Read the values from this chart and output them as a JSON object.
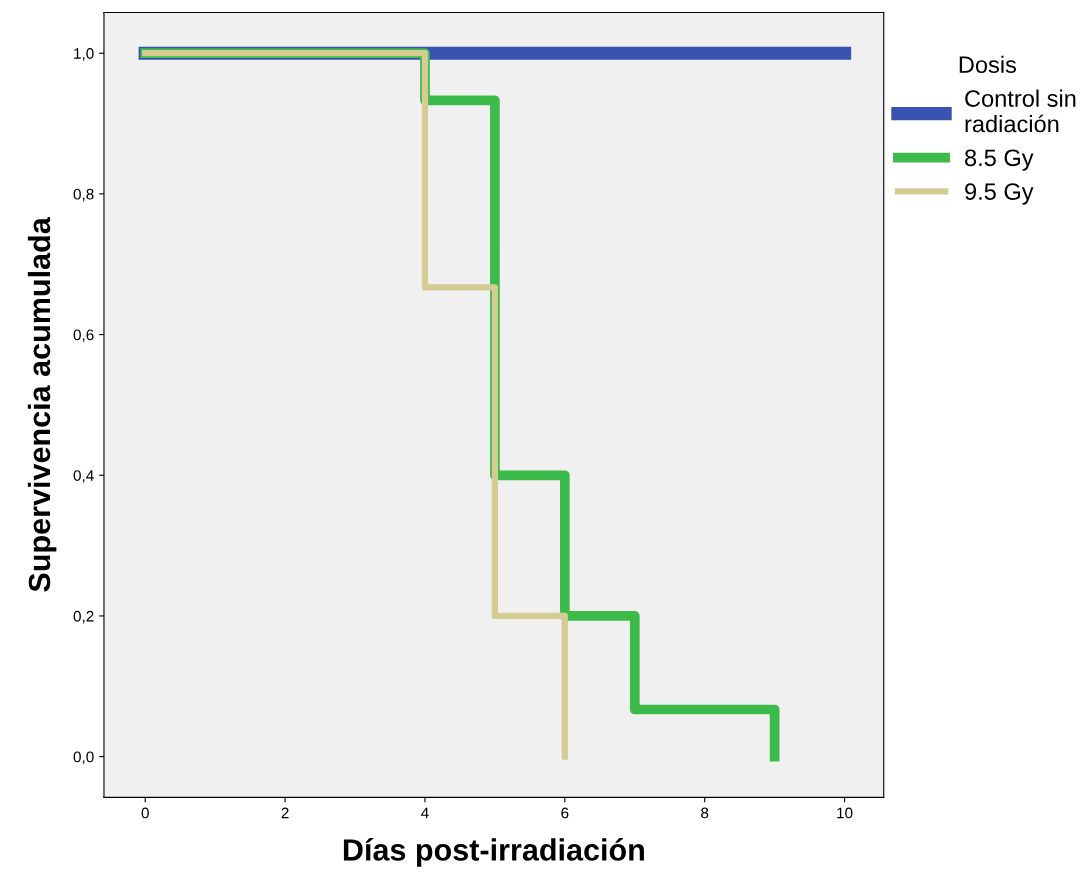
{
  "chart_data": {
    "type": "step",
    "xlabel": "Días post-irradiación",
    "ylabel": "Supervivencia acumulada",
    "legend_title": "Dosis",
    "series": [
      {
        "name": "Control sin\nradiación",
        "color": "#3a52b0",
        "x": [
          0,
          10
        ],
        "values": [
          1.0,
          1.0
        ]
      },
      {
        "name": "8.5 Gy",
        "color": "#3dbb4a",
        "x": [
          0,
          4,
          5,
          6,
          7,
          9
        ],
        "values": [
          1.0,
          0.933,
          0.4,
          0.2,
          0.067,
          0.0
        ]
      },
      {
        "name": "9.5 Gy",
        "color": "#d4cc94",
        "x": [
          0,
          4,
          5,
          6
        ],
        "values": [
          1.0,
          0.667,
          0.2,
          0.0
        ]
      }
    ],
    "xlim": [
      -0.59,
      10.56
    ],
    "ylim": [
      -0.058,
      1.058
    ],
    "xticks": [
      0,
      2,
      4,
      6,
      8,
      10
    ],
    "yticks": [
      {
        "value": 0.0,
        "label": "0,0"
      },
      {
        "value": 0.2,
        "label": "0,2"
      },
      {
        "value": 0.4,
        "label": "0,4"
      },
      {
        "value": 0.6,
        "label": "0,6"
      },
      {
        "value": 0.8,
        "label": "0,8"
      },
      {
        "value": 1.0,
        "label": "1,0"
      }
    ],
    "grid": false,
    "legend": "right",
    "marker": "none",
    "line_style": "solid"
  }
}
